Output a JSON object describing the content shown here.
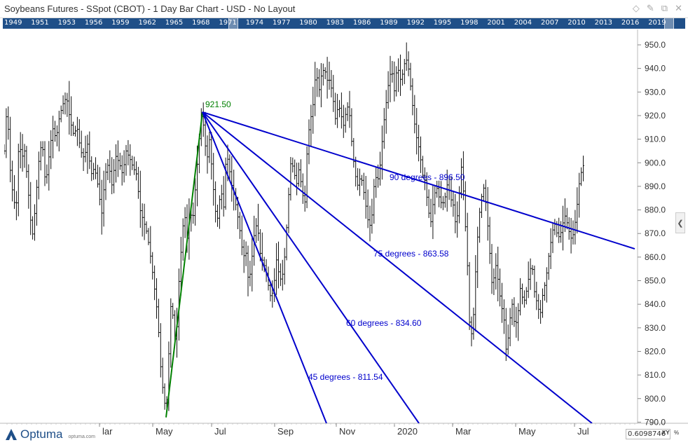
{
  "window": {
    "title": "Soybeans Futures - SSpot (CBOT) - 1 Day Bar Chart - USD - No Layout"
  },
  "timeline": {
    "years": [
      "1949",
      "1951",
      "1953",
      "1956",
      "1959",
      "1962",
      "1965",
      "1968",
      "1971",
      "1974",
      "1977",
      "1980",
      "1983",
      "1986",
      "1989",
      "1992",
      "1995",
      "1998",
      "2001",
      "2004",
      "2007",
      "2010",
      "2013",
      "2016",
      "2019"
    ]
  },
  "footer": {
    "logo": "Optuma",
    "url": "optuma.com",
    "readout": "0.6098746",
    "xy": "XY",
    "pct": "%"
  },
  "colors": {
    "timeline_bg": "#1f4f88",
    "bars": "#111111",
    "fan": "#0000cc",
    "swing": "#008000",
    "swing_label": "#008000"
  },
  "chart_data": {
    "type": "bar",
    "title": "Soybeans Futures - SSpot (CBOT) - 1 Day Bar Chart - USD - No Layout",
    "xlabel": "",
    "ylabel": "",
    "ylim": [
      787,
      955
    ],
    "y_ticks": [
      790,
      800,
      810,
      820,
      830,
      840,
      850,
      860,
      870,
      880,
      890,
      900,
      910,
      920,
      930,
      940,
      950
    ],
    "x_tick_labels": [
      "lar",
      "May",
      "Jul",
      "Sep",
      "Nov",
      "2020",
      "Mar",
      "May",
      "Jul"
    ],
    "grid": false,
    "price_path": [
      [
        0,
        905
      ],
      [
        4,
        925
      ],
      [
        9,
        895
      ],
      [
        13,
        885
      ],
      [
        17,
        880
      ],
      [
        21,
        910
      ],
      [
        25,
        902
      ],
      [
        29,
        905
      ],
      [
        33,
        893
      ],
      [
        37,
        878
      ],
      [
        40,
        868
      ],
      [
        44,
        880
      ],
      [
        49,
        900
      ],
      [
        54,
        910
      ],
      [
        59,
        890
      ],
      [
        64,
        903
      ],
      [
        69,
        915
      ],
      [
        74,
        910
      ],
      [
        79,
        920
      ],
      [
        84,
        925
      ],
      [
        89,
        928
      ],
      [
        94,
        918
      ],
      [
        99,
        912
      ],
      [
        104,
        915
      ],
      [
        109,
        905
      ],
      [
        114,
        902
      ],
      [
        119,
        908
      ],
      [
        124,
        895
      ],
      [
        129,
        898
      ],
      [
        134,
        890
      ],
      [
        139,
        878
      ],
      [
        144,
        895
      ],
      [
        149,
        900
      ],
      [
        154,
        890
      ],
      [
        159,
        903
      ],
      [
        164,
        900
      ],
      [
        169,
        895
      ],
      [
        174,
        905
      ],
      [
        179,
        902
      ],
      [
        184,
        898
      ],
      [
        189,
        895
      ],
      [
        194,
        880
      ],
      [
        199,
        875
      ],
      [
        204,
        870
      ],
      [
        209,
        860
      ],
      [
        214,
        848
      ],
      [
        219,
        835
      ],
      [
        224,
        810
      ],
      [
        229,
        798
      ],
      [
        233,
        800
      ],
      [
        237,
        840
      ],
      [
        241,
        835
      ],
      [
        245,
        820
      ],
      [
        249,
        848
      ],
      [
        253,
        865
      ],
      [
        257,
        880
      ],
      [
        261,
        868
      ],
      [
        265,
        880
      ],
      [
        269,
        875
      ],
      [
        273,
        890
      ],
      [
        277,
        905
      ],
      [
        281,
        920
      ],
      [
        285,
        915
      ],
      [
        289,
        900
      ],
      [
        293,
        910
      ],
      [
        297,
        895
      ],
      [
        301,
        880
      ],
      [
        305,
        876
      ],
      [
        309,
        890
      ],
      [
        313,
        880
      ],
      [
        317,
        905
      ],
      [
        321,
        898
      ],
      [
        325,
        890
      ],
      [
        329,
        885
      ],
      [
        333,
        878
      ],
      [
        337,
        870
      ],
      [
        341,
        860
      ],
      [
        345,
        862
      ],
      [
        349,
        848
      ],
      [
        353,
        858
      ],
      [
        357,
        870
      ],
      [
        361,
        875
      ],
      [
        365,
        862
      ],
      [
        369,
        858
      ],
      [
        373,
        855
      ],
      [
        377,
        848
      ],
      [
        381,
        842
      ],
      [
        385,
        848
      ],
      [
        389,
        860
      ],
      [
        393,
        850
      ],
      [
        397,
        852
      ],
      [
        401,
        862
      ],
      [
        405,
        882
      ],
      [
        409,
        900
      ],
      [
        413,
        898
      ],
      [
        417,
        890
      ],
      [
        421,
        898
      ],
      [
        425,
        888
      ],
      [
        429,
        882
      ],
      [
        433,
        910
      ],
      [
        437,
        918
      ],
      [
        441,
        925
      ],
      [
        445,
        940
      ],
      [
        449,
        930
      ],
      [
        453,
        938
      ],
      [
        457,
        940
      ],
      [
        461,
        935
      ],
      [
        465,
        935
      ],
      [
        469,
        928
      ],
      [
        473,
        918
      ],
      [
        477,
        925
      ],
      [
        481,
        920
      ],
      [
        485,
        915
      ],
      [
        489,
        925
      ],
      [
        493,
        920
      ],
      [
        497,
        905
      ],
      [
        501,
        895
      ],
      [
        505,
        890
      ],
      [
        509,
        895
      ],
      [
        513,
        888
      ],
      [
        517,
        880
      ],
      [
        521,
        872
      ],
      [
        525,
        878
      ],
      [
        529,
        895
      ],
      [
        533,
        892
      ],
      [
        537,
        900
      ],
      [
        541,
        915
      ],
      [
        545,
        925
      ],
      [
        549,
        935
      ],
      [
        553,
        940
      ],
      [
        557,
        930
      ],
      [
        561,
        942
      ],
      [
        565,
        935
      ],
      [
        569,
        938
      ],
      [
        573,
        945
      ],
      [
        577,
        940
      ],
      [
        581,
        930
      ],
      [
        585,
        918
      ],
      [
        589,
        910
      ],
      [
        593,
        905
      ],
      [
        597,
        895
      ],
      [
        601,
        892
      ],
      [
        605,
        880
      ],
      [
        609,
        875
      ],
      [
        613,
        885
      ],
      [
        617,
        890
      ],
      [
        621,
        885
      ],
      [
        625,
        882
      ],
      [
        629,
        885
      ],
      [
        633,
        892
      ],
      [
        637,
        885
      ],
      [
        641,
        882
      ],
      [
        645,
        872
      ],
      [
        649,
        885
      ],
      [
        653,
        900
      ],
      [
        657,
        880
      ],
      [
        661,
        858
      ],
      [
        665,
        825
      ],
      [
        669,
        830
      ],
      [
        673,
        855
      ],
      [
        677,
        875
      ],
      [
        681,
        885
      ],
      [
        685,
        890
      ],
      [
        689,
        878
      ],
      [
        693,
        862
      ],
      [
        697,
        845
      ],
      [
        701,
        858
      ],
      [
        705,
        850
      ],
      [
        709,
        840
      ],
      [
        713,
        835
      ],
      [
        717,
        818
      ],
      [
        721,
        832
      ],
      [
        725,
        840
      ],
      [
        729,
        830
      ],
      [
        733,
        835
      ],
      [
        737,
        848
      ],
      [
        741,
        840
      ],
      [
        745,
        845
      ],
      [
        749,
        852
      ],
      [
        753,
        858
      ],
      [
        757,
        845
      ],
      [
        761,
        840
      ],
      [
        765,
        835
      ],
      [
        769,
        845
      ],
      [
        773,
        850
      ],
      [
        777,
        860
      ],
      [
        781,
        868
      ],
      [
        785,
        875
      ],
      [
        789,
        870
      ],
      [
        793,
        868
      ],
      [
        797,
        874
      ],
      [
        801,
        878
      ],
      [
        805,
        872
      ],
      [
        809,
        868
      ],
      [
        813,
        870
      ],
      [
        817,
        880
      ],
      [
        821,
        892
      ],
      [
        825,
        898
      ],
      [
        829,
        900
      ]
    ],
    "swing": {
      "label": "921.50",
      "from": {
        "bar": 231,
        "price": 792
      },
      "to": {
        "bar": 283,
        "price": 921.5
      }
    },
    "fan": [
      {
        "name": "90 degrees",
        "label": "90 degrees - 896.50",
        "value": 896.5
      },
      {
        "name": "75 degrees",
        "label": "75 degrees - 863.58",
        "value": 863.58
      },
      {
        "name": "60 degrees",
        "label": "60 degrees - 834.60",
        "value": 834.6
      },
      {
        "name": "45 degrees",
        "label": "45 degrees - 811.54",
        "value": 811.54
      }
    ]
  }
}
